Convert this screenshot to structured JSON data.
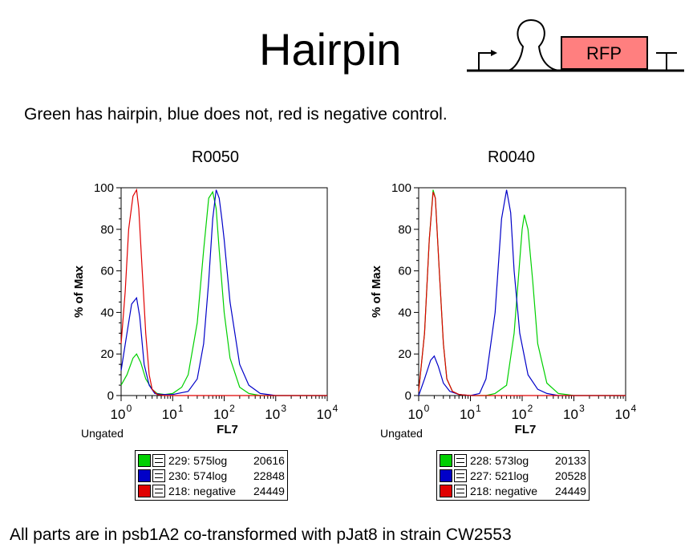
{
  "header": {
    "title": "Hairpin",
    "construct_label": "RFP",
    "construct_fill": "#ff7f7f"
  },
  "subtitle": "Green has hairpin, blue does not, red is negative control.",
  "footer": "All parts are in psb1A2 co-transformed with pJat8 in strain CW2553",
  "colors": {
    "green": "#00d000",
    "blue": "#0000c8",
    "red": "#e00000"
  },
  "chart_data": [
    {
      "type": "line",
      "title": "R0050",
      "xlabel": "FL7",
      "ylabel": "% of Max",
      "x_scale": "log",
      "xlim": [
        1,
        10000
      ],
      "ylim": [
        0,
        100
      ],
      "y_ticks": [
        "0",
        "20",
        "40",
        "60",
        "80",
        "100"
      ],
      "x_ticks": [
        "10^0",
        "10^1",
        "10^2",
        "10^3",
        "10^4"
      ],
      "gate_label": "Ungated",
      "legend": [
        {
          "label": "229: 575log",
          "count": "20616",
          "color": "green"
        },
        {
          "label": "230: 574log",
          "count": "22848",
          "color": "blue"
        },
        {
          "label": "218: negative",
          "count": "24449",
          "color": "red"
        }
      ],
      "series": [
        {
          "color": "green",
          "x": [
            1,
            1.3,
            1.7,
            2,
            2.4,
            3,
            4,
            5,
            7,
            10,
            15,
            20,
            30,
            40,
            50,
            60,
            70,
            80,
            100,
            130,
            200,
            300,
            500,
            1000,
            10000
          ],
          "y": [
            5,
            10,
            18,
            20,
            16,
            8,
            3,
            1,
            0.5,
            1,
            4,
            10,
            35,
            70,
            95,
            98,
            90,
            70,
            40,
            18,
            4,
            1,
            0,
            0,
            0
          ]
        },
        {
          "color": "blue",
          "x": [
            1,
            1.3,
            1.6,
            2,
            2.3,
            2.8,
            3.5,
            4.5,
            6,
            10,
            20,
            30,
            40,
            50,
            60,
            70,
            80,
            90,
            100,
            130,
            200,
            300,
            500,
            1000,
            10000
          ],
          "y": [
            12,
            30,
            44,
            47,
            38,
            15,
            5,
            1,
            0.5,
            0.5,
            2,
            8,
            25,
            55,
            85,
            99,
            95,
            85,
            75,
            45,
            15,
            5,
            1,
            0,
            0
          ]
        },
        {
          "color": "red",
          "x": [
            1,
            1.2,
            1.4,
            1.7,
            2,
            2.2,
            2.5,
            3,
            3.5,
            4,
            5,
            7,
            10,
            10000
          ],
          "y": [
            25,
            50,
            80,
            96,
            99,
            90,
            65,
            30,
            10,
            3,
            0.5,
            0,
            0,
            0
          ]
        }
      ]
    },
    {
      "type": "line",
      "title": "R0040",
      "xlabel": "FL7",
      "ylabel": "% of Max",
      "x_scale": "log",
      "xlim": [
        1,
        10000
      ],
      "ylim": [
        0,
        100
      ],
      "y_ticks": [
        "0",
        "20",
        "40",
        "60",
        "80",
        "100"
      ],
      "x_ticks": [
        "10^0",
        "10^1",
        "10^2",
        "10^3",
        "10^4"
      ],
      "gate_label": "Ungated",
      "legend": [
        {
          "label": "228: 573log",
          "count": "20133",
          "color": "green"
        },
        {
          "label": "227: 521log",
          "count": "20528",
          "color": "blue"
        },
        {
          "label": "218: negative",
          "count": "24449",
          "color": "red"
        }
      ],
      "series": [
        {
          "color": "green",
          "x": [
            1,
            1.3,
            1.6,
            1.9,
            2.1,
            2.5,
            3,
            3.5,
            4.5,
            6,
            10,
            20,
            30,
            50,
            70,
            90,
            100,
            110,
            130,
            160,
            200,
            300,
            500,
            1000,
            10000
          ],
          "y": [
            2,
            30,
            75,
            99,
            95,
            60,
            25,
            8,
            2,
            0.5,
            0,
            0,
            1,
            5,
            30,
            65,
            80,
            87,
            80,
            55,
            25,
            6,
            1,
            0,
            0
          ]
        },
        {
          "color": "blue",
          "x": [
            1,
            1.3,
            1.7,
            2,
            2.4,
            3,
            4,
            6,
            10,
            15,
            20,
            30,
            40,
            50,
            60,
            70,
            90,
            130,
            200,
            300,
            500,
            1000,
            10000
          ],
          "y": [
            0,
            8,
            17,
            19,
            14,
            6,
            2,
            0.5,
            0,
            1,
            8,
            40,
            85,
            99,
            88,
            60,
            30,
            10,
            3,
            1,
            0,
            0,
            0
          ]
        },
        {
          "color": "red",
          "x": [
            1,
            1.3,
            1.6,
            1.9,
            2.1,
            2.5,
            3,
            3.5,
            4.5,
            6,
            10,
            10000
          ],
          "y": [
            2,
            30,
            75,
            98,
            95,
            60,
            25,
            8,
            2,
            0.5,
            0,
            0
          ]
        }
      ]
    }
  ]
}
